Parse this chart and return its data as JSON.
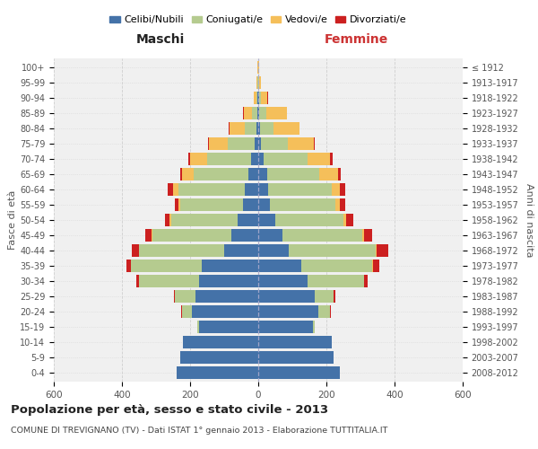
{
  "age_groups": [
    "0-4",
    "5-9",
    "10-14",
    "15-19",
    "20-24",
    "25-29",
    "30-34",
    "35-39",
    "40-44",
    "45-49",
    "50-54",
    "55-59",
    "60-64",
    "65-69",
    "70-74",
    "75-79",
    "80-84",
    "85-89",
    "90-94",
    "95-99",
    "100+"
  ],
  "birth_years": [
    "2008-2012",
    "2003-2007",
    "1998-2002",
    "1993-1997",
    "1988-1992",
    "1983-1987",
    "1978-1982",
    "1973-1977",
    "1968-1972",
    "1963-1967",
    "1958-1962",
    "1953-1957",
    "1948-1952",
    "1943-1947",
    "1938-1942",
    "1933-1937",
    "1928-1932",
    "1923-1927",
    "1918-1922",
    "1913-1917",
    "≤ 1912"
  ],
  "colors": {
    "celibi": "#4472a8",
    "coniugati": "#b5cb8f",
    "vedovi": "#f5bf5a",
    "divorziati": "#cc2020"
  },
  "males": {
    "celibi": [
      240,
      230,
      220,
      175,
      195,
      185,
      175,
      165,
      100,
      80,
      60,
      45,
      40,
      30,
      20,
      10,
      5,
      3,
      2,
      1,
      1
    ],
    "coniugati": [
      0,
      0,
      0,
      5,
      30,
      60,
      175,
      210,
      250,
      230,
      195,
      185,
      195,
      160,
      130,
      80,
      35,
      15,
      4,
      1,
      0
    ],
    "vedovi": [
      0,
      0,
      0,
      0,
      0,
      0,
      0,
      0,
      1,
      2,
      5,
      5,
      15,
      35,
      50,
      55,
      45,
      25,
      8,
      2,
      1
    ],
    "divorziati": [
      0,
      0,
      0,
      0,
      2,
      3,
      8,
      12,
      20,
      20,
      15,
      10,
      15,
      5,
      5,
      2,
      1,
      1,
      0,
      0,
      0
    ]
  },
  "females": {
    "nubili": [
      240,
      220,
      215,
      160,
      175,
      165,
      145,
      125,
      90,
      70,
      50,
      35,
      30,
      25,
      15,
      8,
      5,
      3,
      2,
      1,
      1
    ],
    "coniugate": [
      0,
      0,
      0,
      5,
      35,
      55,
      165,
      210,
      255,
      235,
      200,
      190,
      185,
      155,
      130,
      80,
      40,
      20,
      5,
      1,
      0
    ],
    "vedove": [
      0,
      0,
      0,
      0,
      0,
      0,
      0,
      1,
      2,
      5,
      8,
      15,
      25,
      55,
      65,
      75,
      75,
      60,
      20,
      5,
      2
    ],
    "divorziate": [
      0,
      0,
      0,
      0,
      2,
      5,
      10,
      20,
      35,
      25,
      20,
      15,
      15,
      8,
      8,
      3,
      2,
      1,
      1,
      0,
      0
    ]
  },
  "xlim": 600,
  "title": "Popolazione per età, sesso e stato civile - 2013",
  "subtitle": "COMUNE DI TREVIGNANO (TV) - Dati ISTAT 1° gennaio 2013 - Elaborazione TUTTITALIA.IT",
  "xlabel_left": "Maschi",
  "xlabel_right": "Femmine",
  "ylabel_left": "Fasce di età",
  "ylabel_right": "Anni di nascita",
  "legend_labels": [
    "Celibi/Nubili",
    "Coniugati/e",
    "Vedovi/e",
    "Divorziati/e"
  ],
  "bg_axes": "#f0f0f0",
  "bg_fig": "#ffffff",
  "grid_color": "#cccccc"
}
